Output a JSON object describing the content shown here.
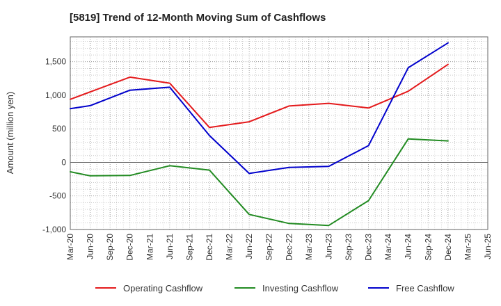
{
  "chart_data": {
    "type": "line",
    "title": "[5819]  Trend of 12-Month Moving Sum of Cashflows",
    "xlabel": "",
    "ylabel": "Amount (million yen)",
    "categories": [
      "Mar-20",
      "Jun-20",
      "Sep-20",
      "Dec-20",
      "Mar-21",
      "Jun-21",
      "Sep-21",
      "Dec-21",
      "Mar-22",
      "Jun-22",
      "Sep-22",
      "Dec-22",
      "Mar-23",
      "Jun-23",
      "Sep-23",
      "Dec-23",
      "Mar-24",
      "Jun-24",
      "Sep-24",
      "Dec-24",
      "Mar-25",
      "Jun-25"
    ],
    "yticks": [
      -1000,
      -500,
      0,
      500,
      1000,
      1500
    ],
    "ytick_labels": [
      "-1,000",
      "-500",
      "0",
      "500",
      "1,000",
      "1,500"
    ],
    "ylim": [
      -1000,
      1870
    ],
    "grid": true,
    "legend_position": "bottom",
    "series": [
      {
        "name": "Operating Cashflow",
        "color": "#e41a1c",
        "values": [
          940,
          null,
          null,
          1270,
          null,
          1180,
          null,
          520,
          null,
          605,
          null,
          840,
          null,
          880,
          null,
          810,
          null,
          1060,
          null,
          1460,
          null,
          null
        ]
      },
      {
        "name": "Investing Cashflow",
        "color": "#228b22",
        "values": [
          -140,
          -200,
          null,
          -195,
          null,
          -50,
          null,
          -115,
          null,
          -775,
          null,
          -910,
          null,
          -940,
          null,
          -570,
          null,
          350,
          null,
          320,
          null,
          null
        ]
      },
      {
        "name": "Free Cashflow",
        "color": "#0000cc",
        "values": [
          800,
          845,
          null,
          1075,
          null,
          1120,
          null,
          400,
          null,
          -165,
          null,
          -75,
          null,
          -60,
          null,
          250,
          null,
          1410,
          null,
          1780,
          null,
          null
        ]
      }
    ]
  }
}
